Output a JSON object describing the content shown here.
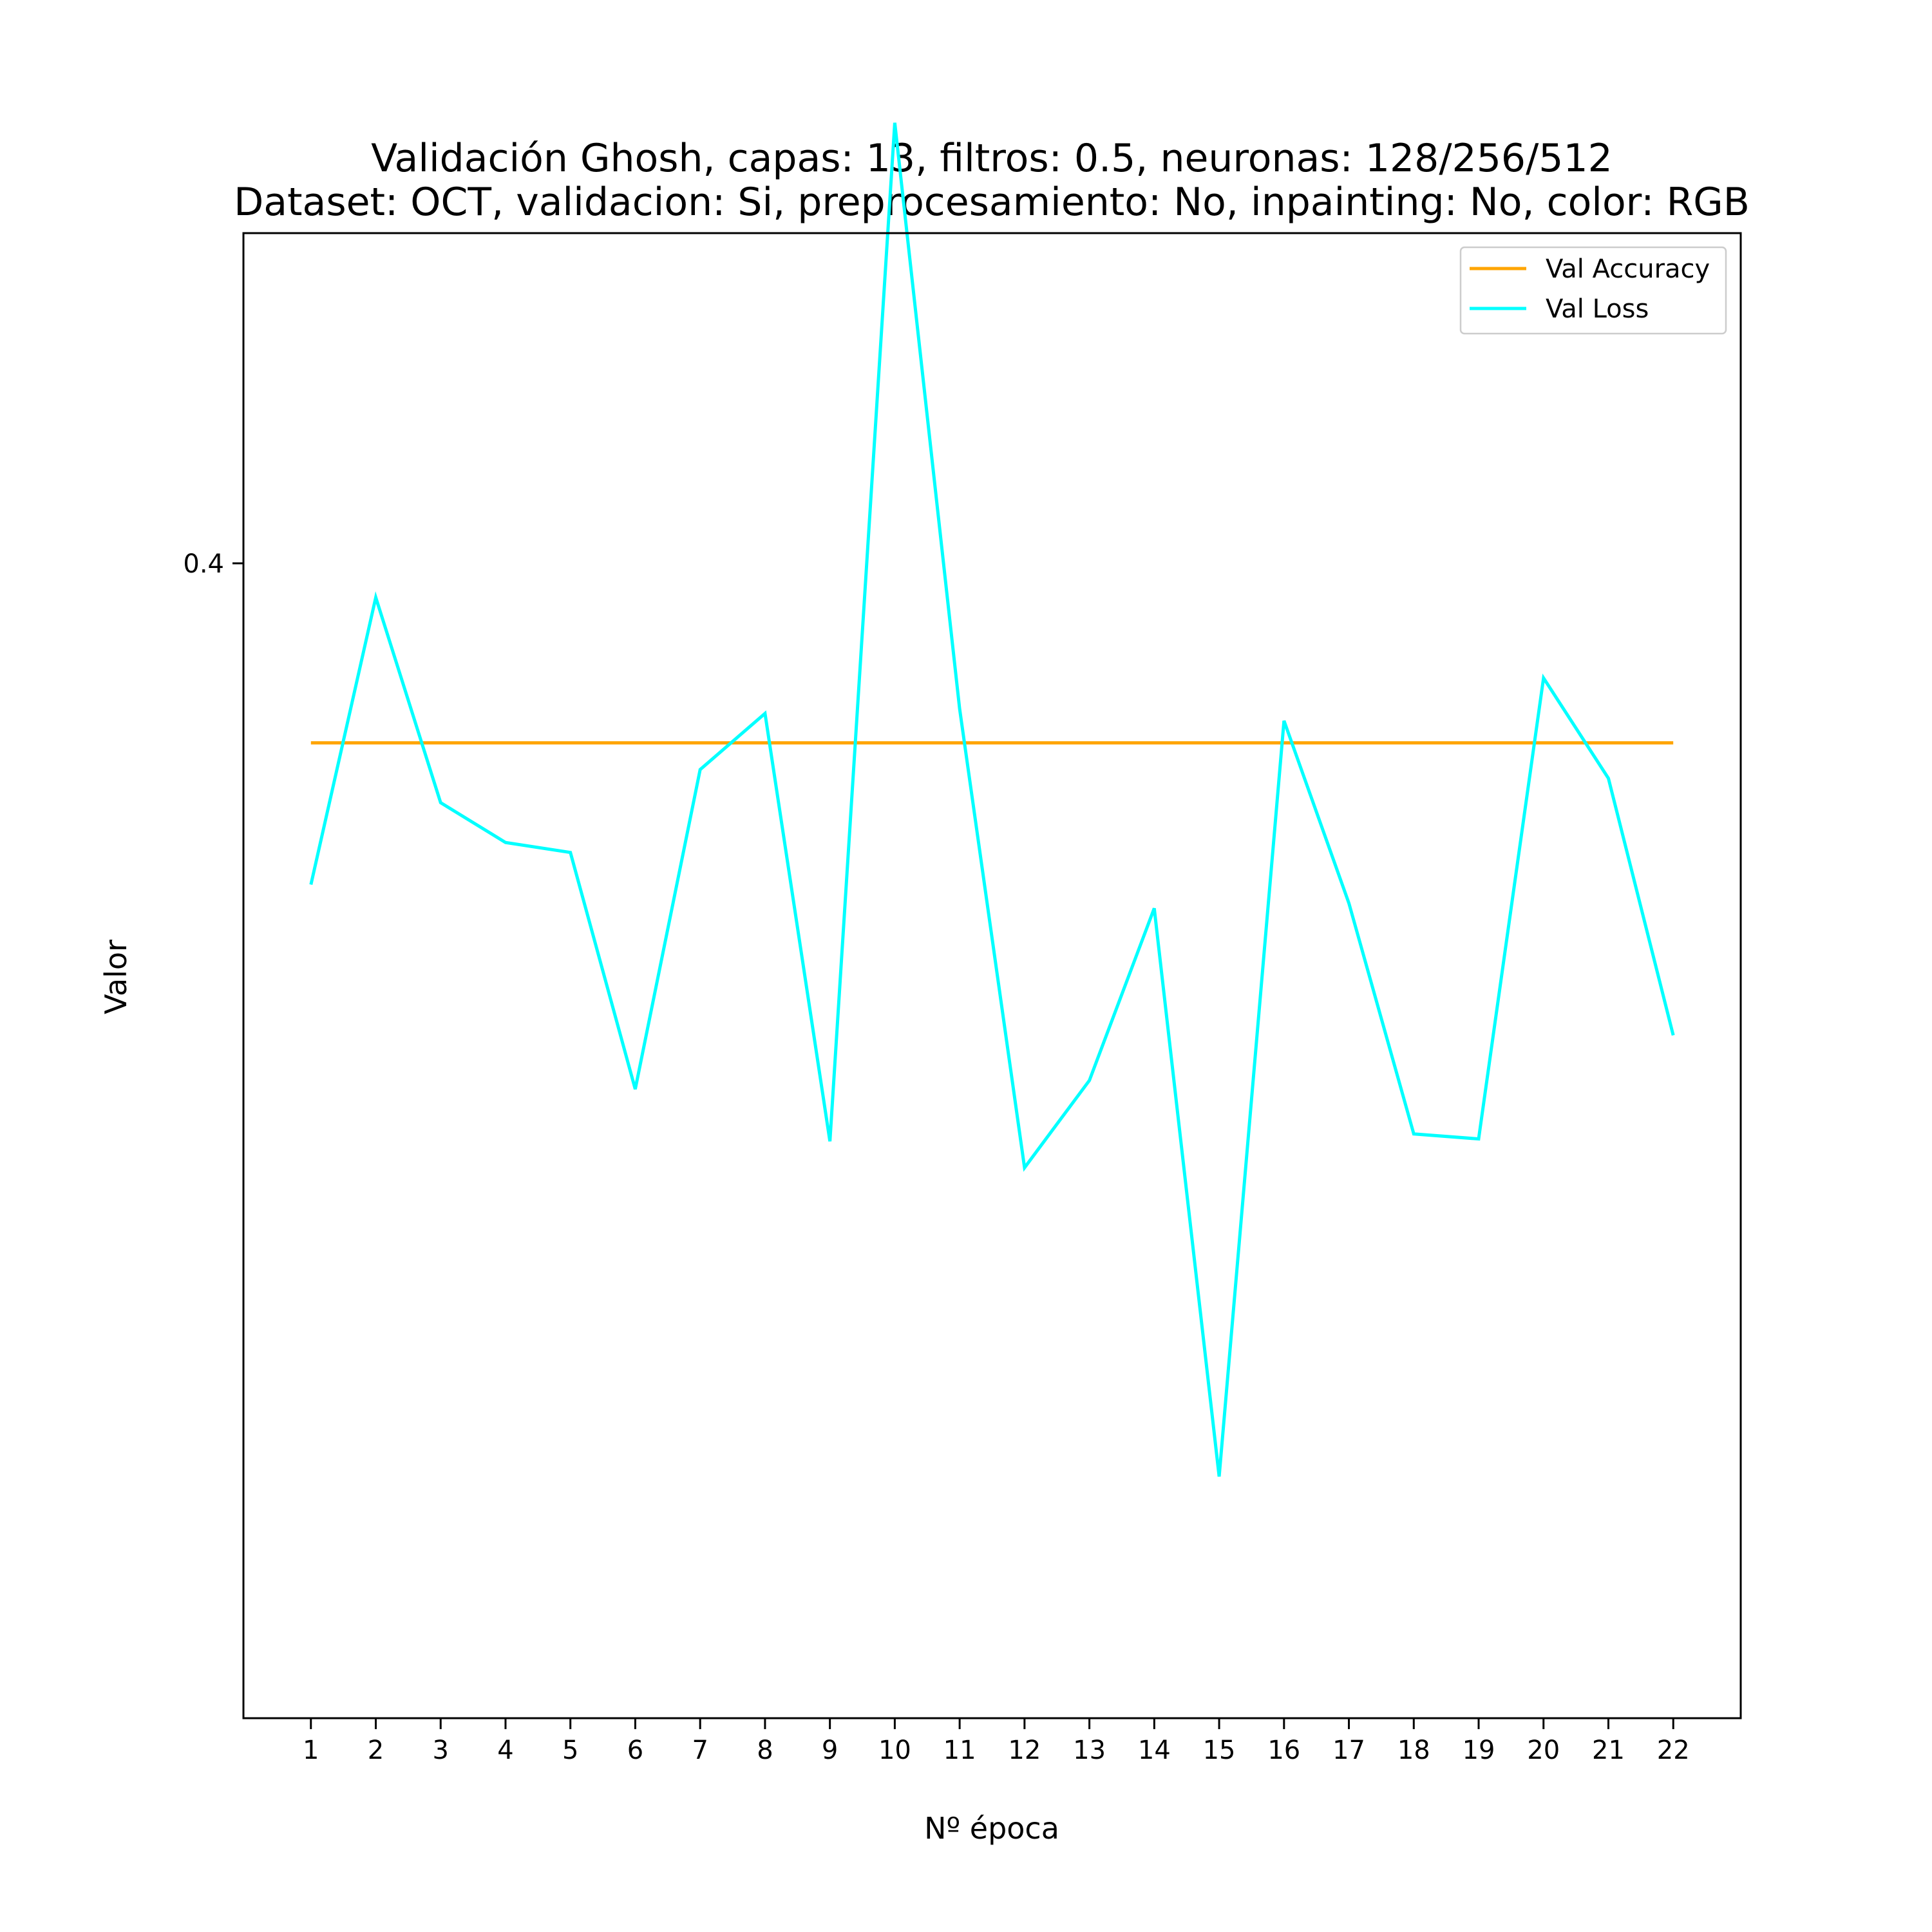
{
  "chart_data": {
    "type": "line",
    "title": "Validación Ghosh, capas: 13, filtros: 0.5, neuronas: 128/256/512",
    "subtitle": "Dataset: OCT, validacion: Si, preprocesamiento: No, inpainting: No, color: RGB",
    "xlabel": "Nº época",
    "ylabel": "Valor",
    "x": [
      1,
      2,
      3,
      4,
      5,
      6,
      7,
      8,
      9,
      10,
      11,
      12,
      13,
      14,
      15,
      16,
      17,
      18,
      19,
      20,
      21,
      22
    ],
    "y_ticks": [
      0.4
    ],
    "y_tick_labels": [
      "0.4"
    ],
    "ylim": [
      0.0545,
      0.4988
    ],
    "xlim": [
      -0.04,
      23.04
    ],
    "grid": false,
    "legend_position": "top-right",
    "series": [
      {
        "name": "Val Accuracy",
        "color": "#ffa500",
        "values": [
          0.3463,
          0.3463,
          0.3463,
          0.3463,
          0.3463,
          0.3463,
          0.3463,
          0.3463,
          0.3463,
          0.3463,
          0.3463,
          0.3463,
          0.3463,
          0.3463,
          0.3463,
          0.3463,
          0.3463,
          0.3463,
          0.3463,
          0.3463,
          0.3463,
          0.3463
        ]
      },
      {
        "name": "Val Loss",
        "color": "#00ffff",
        "values": [
          0.3039,
          0.3898,
          0.3284,
          0.3165,
          0.3135,
          0.2427,
          0.3383,
          0.3551,
          0.2271,
          0.5318,
          0.3565,
          0.2192,
          0.2453,
          0.2968,
          0.1268,
          0.3529,
          0.2983,
          0.2293,
          0.2278,
          0.3657,
          0.3357,
          0.2588
        ]
      }
    ]
  }
}
